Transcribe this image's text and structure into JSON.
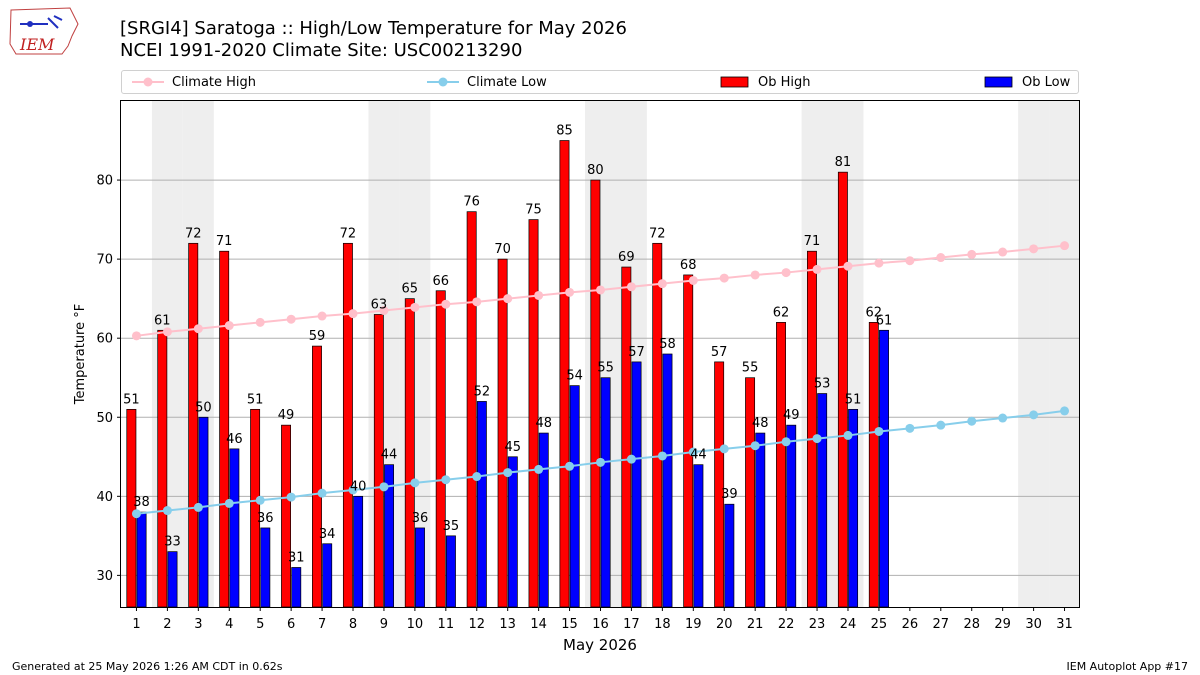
{
  "logo": {
    "text": "IEM"
  },
  "title_line1": "[SRGI4] Saratoga :: High/Low Temperature for May 2026",
  "title_line2": "NCEI 1991-2020 Climate Site: USC00213290",
  "footer_left": "Generated at 25 May 2026 1:26 AM CDT in 0.62s",
  "footer_right": "IEM Autoplot App #17",
  "colors": {
    "ob_high": "#ff0000",
    "ob_low": "#0000ff",
    "climate_high": "#ffc0cb",
    "climate_low": "#87ceeb",
    "weekend_shade": "#eeeeee",
    "grid": "#b0b0b0"
  },
  "chart_data": {
    "type": "bar",
    "title": "[SRGI4] Saratoga :: High/Low Temperature for May 2026",
    "subtitle": "NCEI 1991-2020 Climate Site: USC00213290",
    "xlabel": "May 2026",
    "ylabel": "Temperature °F",
    "ylim": [
      26,
      90
    ],
    "yticks": [
      30,
      40,
      50,
      60,
      70,
      80
    ],
    "grid": "y",
    "legend_position": "top, above plot",
    "categories": [
      1,
      2,
      3,
      4,
      5,
      6,
      7,
      8,
      9,
      10,
      11,
      12,
      13,
      14,
      15,
      16,
      17,
      18,
      19,
      20,
      21,
      22,
      23,
      24,
      25,
      26,
      27,
      28,
      29,
      30,
      31
    ],
    "shaded_days": [
      2,
      3,
      9,
      10,
      16,
      17,
      23,
      24,
      30,
      31
    ],
    "series": [
      {
        "name": "Climate High",
        "kind": "line",
        "values": [
          60.3,
          60.8,
          61.2,
          61.6,
          62.0,
          62.4,
          62.8,
          63.1,
          63.5,
          63.9,
          64.3,
          64.6,
          65.0,
          65.4,
          65.8,
          66.1,
          66.5,
          66.9,
          67.3,
          67.6,
          68.0,
          68.3,
          68.7,
          69.1,
          69.5,
          69.8,
          70.2,
          70.6,
          70.9,
          71.3,
          71.7
        ]
      },
      {
        "name": "Climate Low",
        "kind": "line",
        "values": [
          37.8,
          38.2,
          38.6,
          39.1,
          39.5,
          39.9,
          40.4,
          40.8,
          41.2,
          41.7,
          42.1,
          42.5,
          43.0,
          43.4,
          43.8,
          44.3,
          44.7,
          45.1,
          45.6,
          46.0,
          46.4,
          46.9,
          47.3,
          47.7,
          48.2,
          48.6,
          49.0,
          49.5,
          49.9,
          50.3,
          50.8
        ]
      },
      {
        "name": "Ob High",
        "kind": "bar",
        "values": [
          51,
          61,
          72,
          71,
          51,
          49,
          59,
          72,
          63,
          65,
          66,
          76,
          70,
          75,
          85,
          80,
          69,
          72,
          68,
          57,
          55,
          62,
          71,
          81,
          62,
          null,
          null,
          null,
          null,
          null,
          null
        ]
      },
      {
        "name": "Ob Low",
        "kind": "bar",
        "values": [
          38,
          33,
          50,
          46,
          36,
          31,
          34,
          40,
          44,
          36,
          35,
          52,
          45,
          48,
          54,
          55,
          57,
          58,
          44,
          39,
          48,
          49,
          53,
          51,
          61,
          null,
          null,
          null,
          null,
          null,
          null
        ]
      }
    ],
    "bar_labels_high": [
      "51",
      "61",
      "72",
      "71",
      "51",
      "49",
      "59",
      "72",
      "63",
      "65",
      "66",
      "76",
      "70",
      "75",
      "85",
      "80",
      "69",
      "72",
      "68",
      "57",
      "55",
      "62",
      "71",
      "81",
      "62"
    ],
    "bar_labels_low": [
      "38",
      "33",
      "50",
      "46",
      "36",
      "31",
      "34",
      "40",
      "44",
      "36",
      "35",
      "52",
      "45",
      "48",
      "54",
      "55",
      "57",
      "58",
      "44",
      "39",
      "48",
      "49",
      "53",
      "51",
      "61"
    ],
    "tick_labels": [
      "30",
      "40",
      "50",
      "60",
      "70",
      "80"
    ],
    "day_labels": [
      "1",
      "2",
      "3",
      "4",
      "5",
      "6",
      "7",
      "8",
      "9",
      "10",
      "11",
      "12",
      "13",
      "14",
      "15",
      "16",
      "17",
      "18",
      "19",
      "20",
      "21",
      "22",
      "23",
      "24",
      "25",
      "26",
      "27",
      "28",
      "29",
      "30",
      "31"
    ]
  }
}
